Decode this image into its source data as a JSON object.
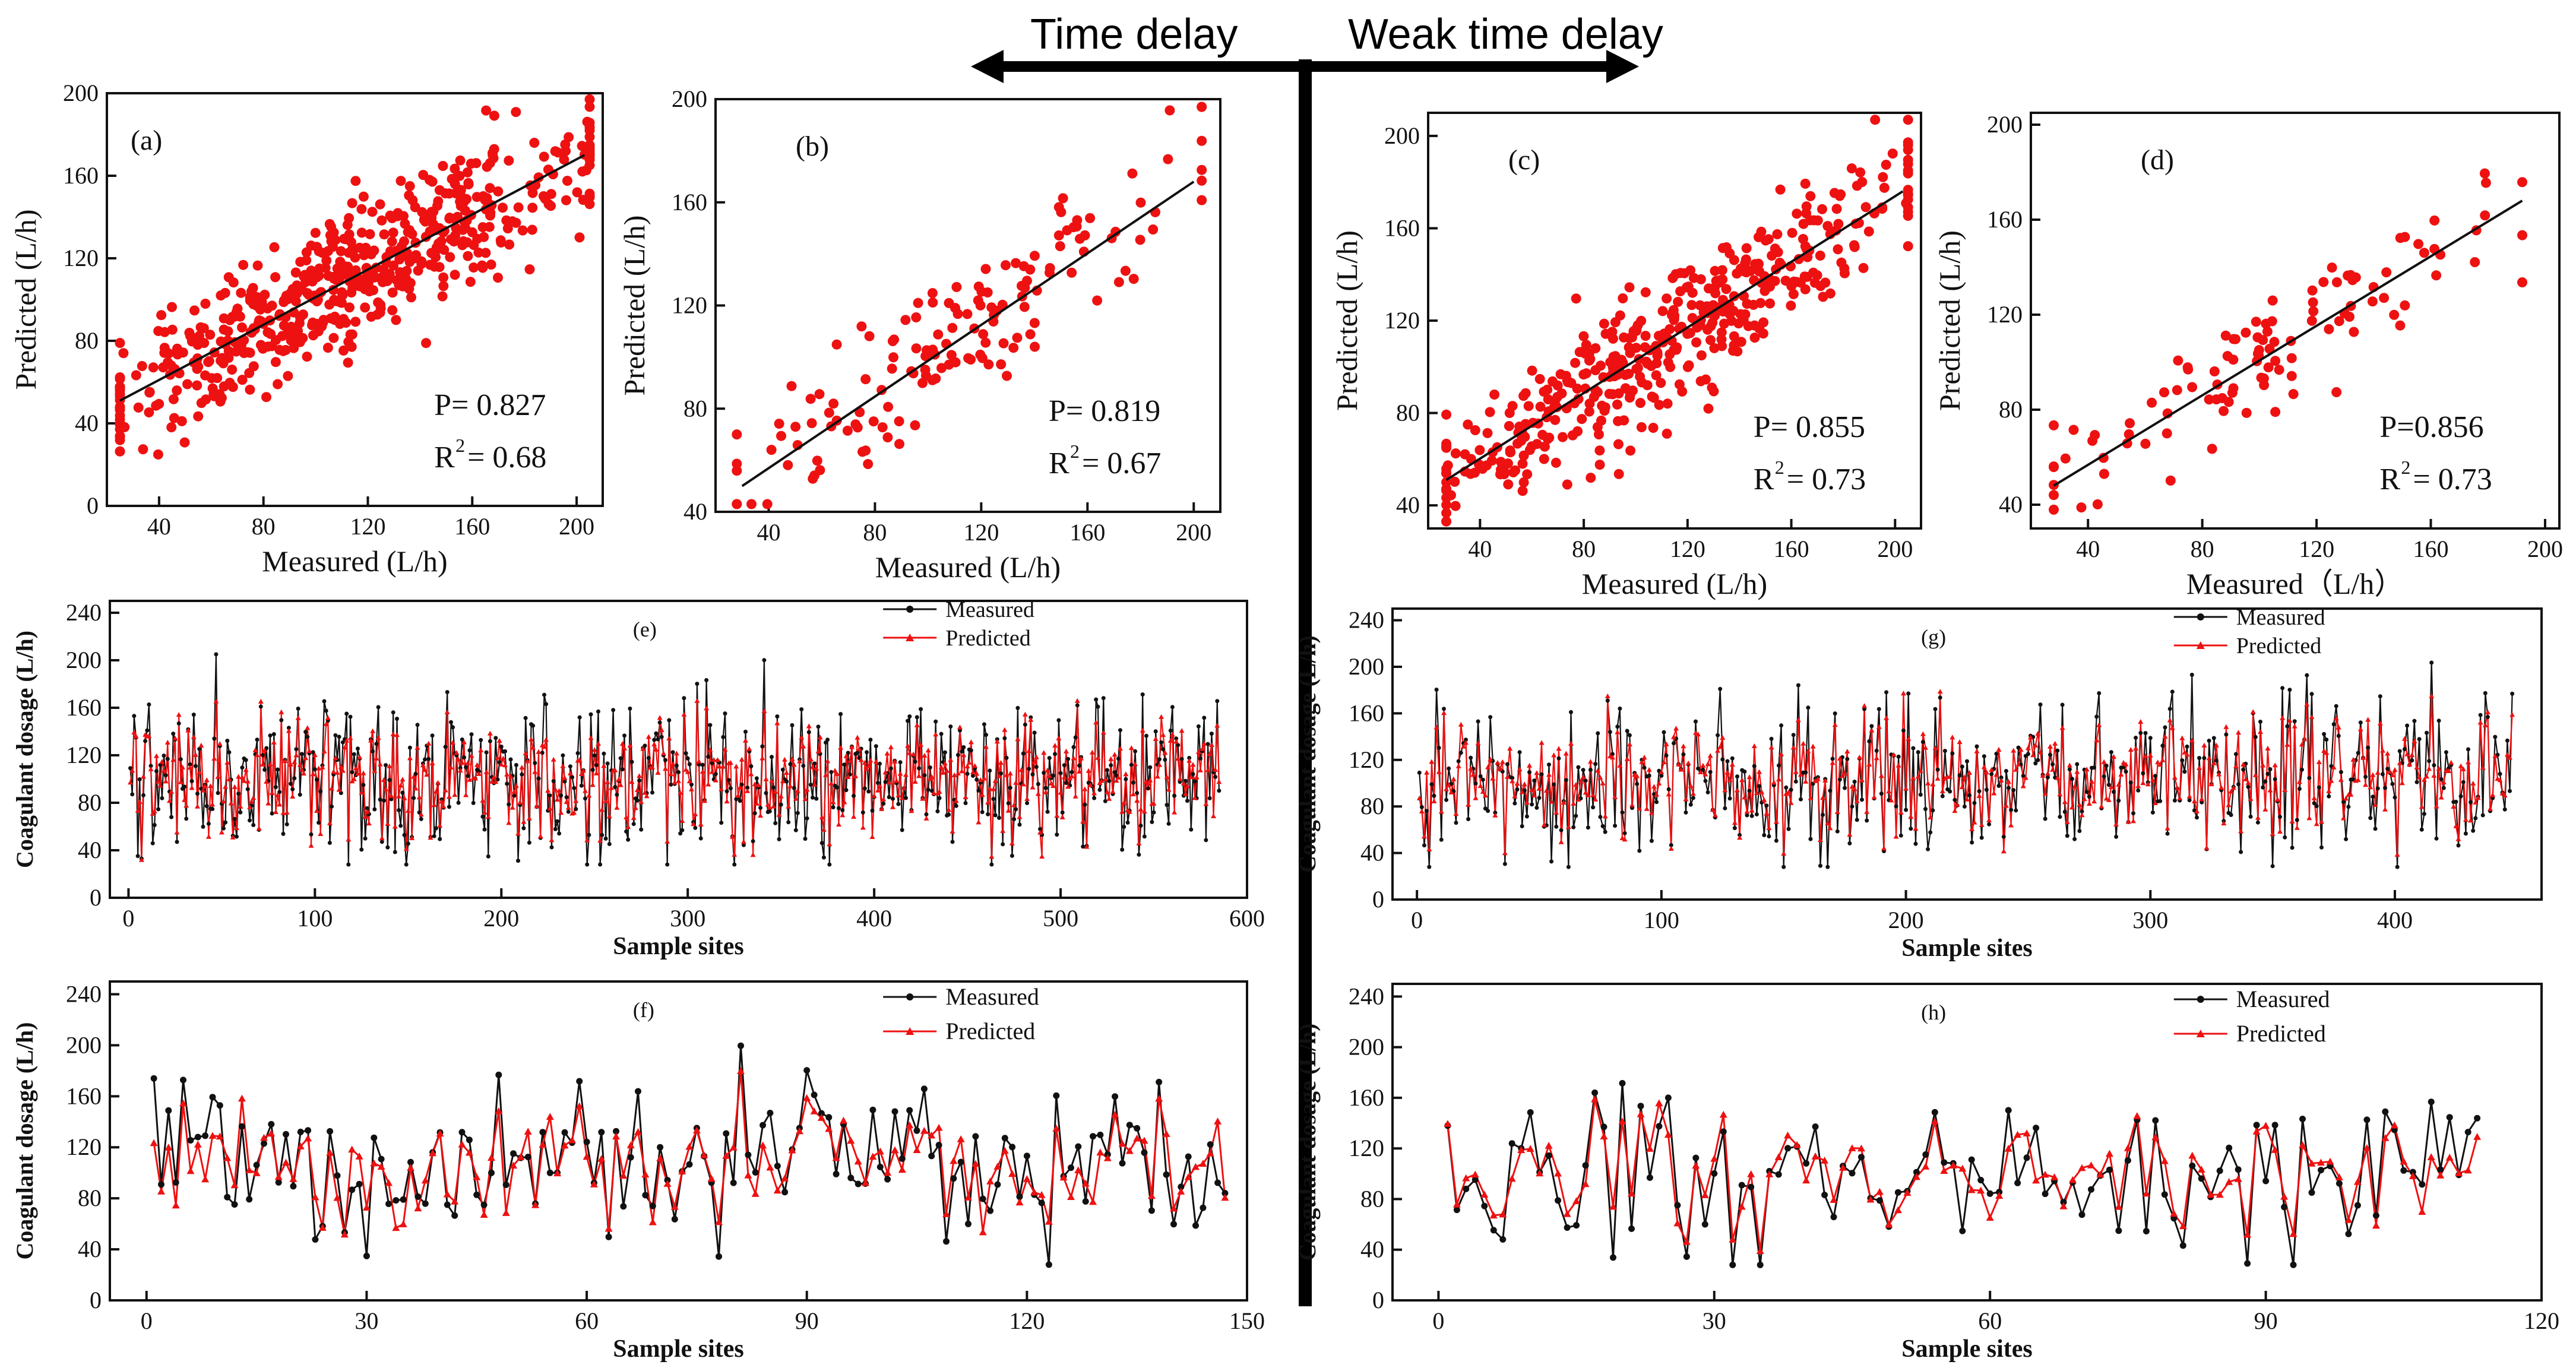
{
  "header": {
    "left_label": "Time delay",
    "right_label": "Weak time delay"
  },
  "colors": {
    "predicted": "#ee1111",
    "measured": "#111111",
    "fit": "#111111",
    "axis": "#111111"
  },
  "chart_data": [
    {
      "id": "a",
      "type": "scatter",
      "panel_label": "(a)",
      "xlabel": "Measured (L/h)",
      "ylabel": "Predicted (L/h)",
      "xlim": [
        20,
        210
      ],
      "ylim": [
        0,
        200
      ],
      "xticks": [
        40,
        80,
        120,
        160,
        200
      ],
      "yticks": [
        0,
        40,
        80,
        120,
        160,
        200
      ],
      "fit_line": [
        [
          25,
          51
        ],
        [
          203,
          170
        ]
      ],
      "points_count": 600,
      "seed": 11,
      "xrange": [
        25,
        205
      ],
      "slope": 0.66,
      "intercept": 35,
      "noise": 16,
      "stat_p": "P= 0.827",
      "stat_r2": "= 0.68"
    },
    {
      "id": "b",
      "type": "scatter",
      "panel_label": "(b)",
      "xlabel": "Measured (L/h)",
      "ylabel": "Predicted (L/h)",
      "xlim": [
        20,
        210
      ],
      "ylim": [
        40,
        200
      ],
      "xticks": [
        40,
        80,
        120,
        160,
        200
      ],
      "yticks": [
        40,
        80,
        120,
        160,
        200
      ],
      "fit_line": [
        [
          30,
          50
        ],
        [
          200,
          168
        ]
      ],
      "points_count": 150,
      "seed": 23,
      "xrange": [
        28,
        203
      ],
      "slope": 0.69,
      "intercept": 29,
      "noise": 15,
      "stat_p": "P= 0.819",
      "stat_r2": "= 0.67"
    },
    {
      "id": "c",
      "type": "scatter",
      "panel_label": "(c)",
      "xlabel": "Measured (L/h)",
      "ylabel": "Predicted (L/h)",
      "xlim": [
        20,
        210
      ],
      "ylim": [
        30,
        210
      ],
      "xticks": [
        40,
        80,
        120,
        160,
        200
      ],
      "yticks": [
        40,
        80,
        120,
        160,
        200
      ],
      "fit_line": [
        [
          27,
          51
        ],
        [
          203,
          176
        ]
      ],
      "points_count": 450,
      "seed": 37,
      "xrange": [
        27,
        205
      ],
      "slope": 0.71,
      "intercept": 32,
      "noise": 14,
      "stat_p": "P= 0.855",
      "stat_r2": "= 0.73"
    },
    {
      "id": "d",
      "type": "scatter",
      "panel_label": "(d)",
      "xlabel": "Measured（L/h）",
      "ylabel": "Predicted (L/h)",
      "xlim": [
        20,
        205
      ],
      "ylim": [
        30,
        205
      ],
      "xticks": [
        40,
        80,
        120,
        160,
        200
      ],
      "yticks": [
        40,
        80,
        120,
        160,
        200
      ],
      "fit_line": [
        [
          28,
          48
        ],
        [
          192,
          168
        ]
      ],
      "points_count": 110,
      "seed": 41,
      "xrange": [
        28,
        192
      ],
      "slope": 0.73,
      "intercept": 28,
      "noise": 13,
      "stat_p": "P=0.856",
      "stat_r2": "= 0.73"
    },
    {
      "id": "e",
      "type": "line",
      "panel_label": "(e)",
      "xlabel": "Sample sites",
      "ylabel": "Coagulant dosage (L/h)",
      "xlim": [
        -10,
        600
      ],
      "ylim": [
        0,
        250
      ],
      "xticks": [
        0,
        100,
        200,
        300,
        400,
        500,
        600
      ],
      "yticks": [
        0,
        40,
        80,
        120,
        160,
        200,
        240
      ],
      "n": 585,
      "seed": 101,
      "mean": 103,
      "sd": 33,
      "series": [
        {
          "name": "Measured",
          "color": "#111111"
        },
        {
          "name": "Predicted",
          "color": "#ee1111"
        }
      ]
    },
    {
      "id": "f",
      "type": "line",
      "panel_label": "(f)",
      "xlabel": "Sample sites",
      "ylabel": "Coagulant dosage (L/h)",
      "xlim": [
        -5,
        150
      ],
      "ylim": [
        0,
        250
      ],
      "xticks": [
        0,
        30,
        60,
        90,
        120,
        150
      ],
      "yticks": [
        0,
        40,
        80,
        120,
        160,
        200,
        240
      ],
      "n": 147,
      "seed": 202,
      "mean": 105,
      "sd": 35,
      "series": [
        {
          "name": "Measured",
          "color": "#111111"
        },
        {
          "name": "Predicted",
          "color": "#ee1111"
        }
      ]
    },
    {
      "id": "g",
      "type": "line",
      "panel_label": "(g)",
      "xlabel": "Sample sites",
      "ylabel": "Coagulant dosage (L/h)",
      "xlim": [
        -10,
        460
      ],
      "ylim": [
        0,
        250
      ],
      "xticks": [
        0,
        100,
        200,
        300,
        400
      ],
      "yticks": [
        0,
        40,
        80,
        120,
        160,
        200,
        240
      ],
      "n": 448,
      "seed": 303,
      "mean": 105,
      "sd": 32,
      "series": [
        {
          "name": "Measured",
          "color": "#111111"
        },
        {
          "name": "Predicted",
          "color": "#ee1111"
        }
      ]
    },
    {
      "id": "h",
      "type": "line",
      "panel_label": "(h)",
      "xlabel": "Sample sites",
      "ylabel": "Coagulant dosage (L/h)",
      "xlim": [
        -5,
        120
      ],
      "ylim": [
        0,
        250
      ],
      "xticks": [
        0,
        30,
        60,
        90,
        120
      ],
      "yticks": [
        0,
        40,
        80,
        120,
        160,
        200,
        240
      ],
      "n": 113,
      "seed": 404,
      "mean": 100,
      "sd": 33,
      "series": [
        {
          "name": "Measured",
          "color": "#111111"
        },
        {
          "name": "Predicted",
          "color": "#ee1111"
        }
      ]
    }
  ]
}
